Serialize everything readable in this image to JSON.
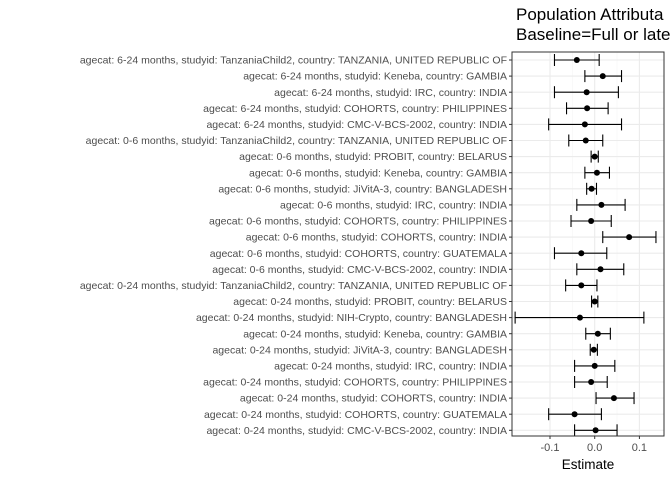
{
  "chart_data": {
    "type": "scatter",
    "title_lines": [
      "Population Attributa",
      "Baseline=Full or late"
    ],
    "xlabel": "Estimate",
    "ylabel": "",
    "xlim": [
      -0.185,
      0.155
    ],
    "xticks": [
      -0.1,
      0.0,
      0.1
    ],
    "xtick_labels": [
      "-0.1",
      "0.0",
      "0.1"
    ],
    "grid": true,
    "legend": "none",
    "colors": {
      "point": "#000000",
      "errorbar": "#000000",
      "panel_border": "#333333",
      "grid": "#ebebeb",
      "grid_minor": "#f5f5f5"
    },
    "rows": [
      {
        "label": "agecat: 6-24 months, studyid: TanzaniaChild2, country: TANZANIA, UNITED REPUBLIC OF",
        "estimate": -0.04,
        "lower": -0.09,
        "upper": 0.01
      },
      {
        "label": "agecat: 6-24 months, studyid: Keneba, country: GAMBIA",
        "estimate": 0.018,
        "lower": -0.022,
        "upper": 0.06
      },
      {
        "label": "agecat: 6-24 months, studyid: IRC, country: INDIA",
        "estimate": -0.018,
        "lower": -0.09,
        "upper": 0.053
      },
      {
        "label": "agecat: 6-24 months, studyid: COHORTS, country: PHILIPPINES",
        "estimate": -0.017,
        "lower": -0.063,
        "upper": 0.03
      },
      {
        "label": "agecat: 6-24 months, studyid: CMC-V-BCS-2002, country: INDIA",
        "estimate": -0.022,
        "lower": -0.103,
        "upper": 0.06
      },
      {
        "label": "agecat: 0-6 months, studyid: TanzaniaChild2, country: TANZANIA, UNITED REPUBLIC OF",
        "estimate": -0.02,
        "lower": -0.058,
        "upper": 0.018
      },
      {
        "label": "agecat: 0-6 months, studyid: PROBIT, country: BELARUS",
        "estimate": 0.0,
        "lower": -0.008,
        "upper": 0.008
      },
      {
        "label": "agecat: 0-6 months, studyid: Keneba, country: GAMBIA",
        "estimate": 0.005,
        "lower": -0.022,
        "upper": 0.033
      },
      {
        "label": "agecat: 0-6 months, studyid: JiVitA-3, country: BANGLADESH",
        "estimate": -0.007,
        "lower": -0.018,
        "upper": 0.004
      },
      {
        "label": "agecat: 0-6 months, studyid: IRC, country: INDIA",
        "estimate": 0.015,
        "lower": -0.04,
        "upper": 0.068
      },
      {
        "label": "agecat: 0-6 months, studyid: COHORTS, country: PHILIPPINES",
        "estimate": -0.008,
        "lower": -0.053,
        "upper": 0.037
      },
      {
        "label": "agecat: 0-6 months, studyid: COHORTS, country: INDIA",
        "estimate": 0.077,
        "lower": 0.018,
        "upper": 0.137
      },
      {
        "label": "agecat: 0-6 months, studyid: COHORTS, country: GUATEMALA",
        "estimate": -0.03,
        "lower": -0.09,
        "upper": 0.027
      },
      {
        "label": "agecat: 0-6 months, studyid: CMC-V-BCS-2002, country: INDIA",
        "estimate": 0.013,
        "lower": -0.04,
        "upper": 0.065
      },
      {
        "label": "agecat: 0-24 months, studyid: TanzaniaChild2, country: TANZANIA, UNITED REPUBLIC OF",
        "estimate": -0.03,
        "lower": -0.065,
        "upper": 0.005
      },
      {
        "label": "agecat: 0-24 months, studyid: PROBIT, country: BELARUS",
        "estimate": 0.0,
        "lower": -0.007,
        "upper": 0.007
      },
      {
        "label": "agecat: 0-24 months, studyid: NIH-Crypto, country: BANGLADESH",
        "estimate": -0.033,
        "lower": -0.178,
        "upper": 0.11
      },
      {
        "label": "agecat: 0-24 months, studyid: Keneba, country: GAMBIA",
        "estimate": 0.007,
        "lower": -0.02,
        "upper": 0.035
      },
      {
        "label": "agecat: 0-24 months, studyid: JiVitA-3, country: BANGLADESH",
        "estimate": -0.002,
        "lower": -0.01,
        "upper": 0.006
      },
      {
        "label": "agecat: 0-24 months, studyid: IRC, country: INDIA",
        "estimate": 0.0,
        "lower": -0.045,
        "upper": 0.045
      },
      {
        "label": "agecat: 0-24 months, studyid: COHORTS, country: PHILIPPINES",
        "estimate": -0.008,
        "lower": -0.045,
        "upper": 0.028
      },
      {
        "label": "agecat: 0-24 months, studyid: COHORTS, country: INDIA",
        "estimate": 0.043,
        "lower": 0.003,
        "upper": 0.088
      },
      {
        "label": "agecat: 0-24 months, studyid: COHORTS, country: GUATEMALA",
        "estimate": -0.045,
        "lower": -0.103,
        "upper": 0.015
      },
      {
        "label": "agecat: 0-24 months, studyid: CMC-V-BCS-2002, country: INDIA",
        "estimate": 0.002,
        "lower": -0.045,
        "upper": 0.05
      }
    ]
  }
}
